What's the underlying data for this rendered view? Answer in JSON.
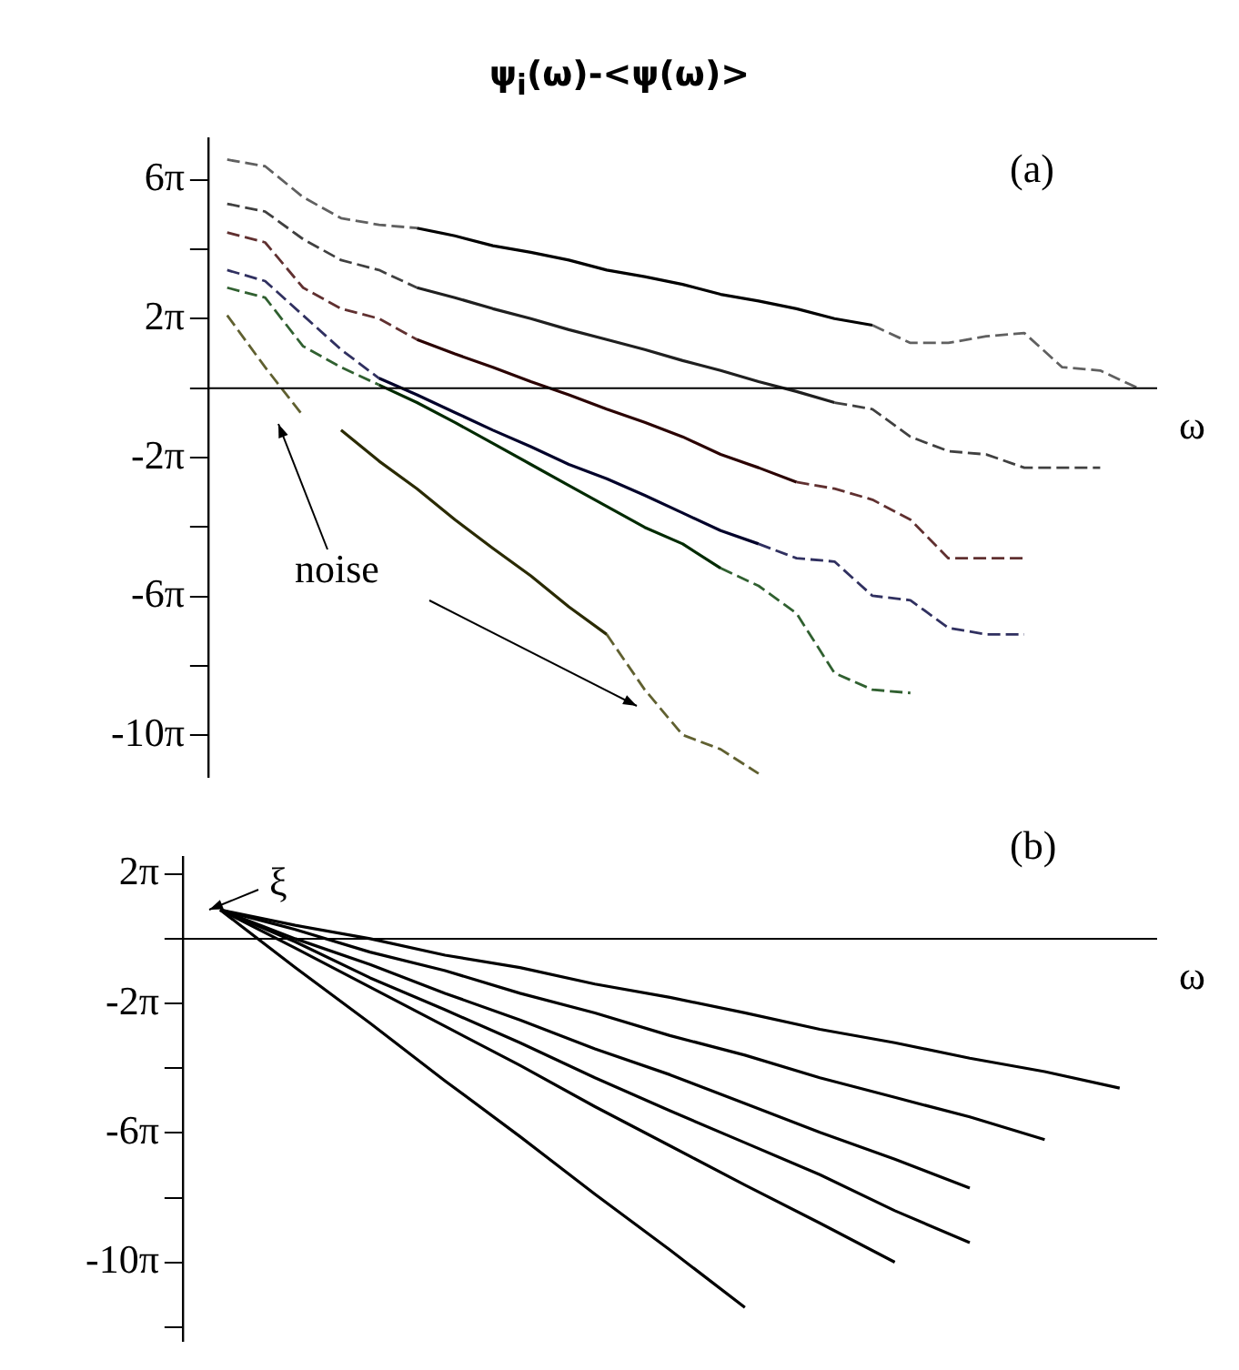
{
  "chart_data": [
    {
      "type": "line",
      "title": "ψ$_{i}$(ω)-<ψ(ω)>",
      "subtitle": "(a)",
      "xlabel": "ω",
      "marker": "none",
      "legend": false,
      "tick_labels": "y",
      "categories": [
        null,
        null,
        null,
        null,
        null,
        null,
        null,
        null,
        null,
        null,
        null,
        null,
        null,
        null,
        null,
        null,
        null,
        null,
        null,
        null,
        null,
        null,
        null,
        null,
        null
      ],
      "series": [
        {
          "color": "#606060",
          "line_style": "dashed",
          "values": [
            20.7,
            20.1,
            17.3,
            15.4,
            14.8,
            14.5,
            null,
            null,
            null,
            null,
            null,
            null,
            null,
            null,
            null,
            null,
            null,
            5.7,
            4.1,
            4.1,
            4.7,
            5.0,
            1.9,
            1.6,
            0
          ]
        },
        {
          "color": "#000000",
          "line_style": "solid",
          "values": [
            null,
            null,
            null,
            null,
            null,
            14.5,
            13.8,
            12.9,
            12.3,
            11.6,
            10.7,
            10.1,
            9.4,
            8.5,
            7.9,
            7.2,
            6.3,
            5.7,
            null,
            null,
            null,
            null,
            null,
            null,
            null
          ]
        },
        {
          "color": "#404040",
          "line_style": "dashed",
          "values": [
            16.7,
            16.0,
            13.5,
            11.6,
            10.7,
            9.1,
            null,
            null,
            null,
            null,
            null,
            null,
            null,
            null,
            null,
            null,
            -1.3,
            -1.9,
            -4.4,
            -5.7,
            -6.0,
            -7.2,
            -7.2,
            -7.2,
            null
          ]
        },
        {
          "color": "#1f1f1f",
          "line_style": "solid",
          "values": [
            null,
            null,
            null,
            null,
            null,
            9.1,
            8.2,
            7.2,
            6.3,
            5.3,
            4.4,
            3.5,
            2.5,
            1.6,
            0.6,
            -0.3,
            -1.3,
            null,
            null,
            null,
            null,
            null,
            null,
            null,
            null
          ]
        },
        {
          "color": "#603030",
          "line_style": "dashed",
          "values": [
            14.1,
            13.2,
            9.1,
            7.2,
            6.3,
            4.4,
            null,
            null,
            null,
            null,
            null,
            null,
            null,
            null,
            null,
            -8.5,
            -9.1,
            -10.1,
            -11.9,
            -15.4,
            -15.4,
            -15.4,
            null,
            null,
            null
          ]
        },
        {
          "color": "#2a0000",
          "line_style": "solid",
          "values": [
            null,
            null,
            null,
            null,
            null,
            4.4,
            3.1,
            1.9,
            0.6,
            -0.6,
            -1.9,
            -3.1,
            -4.4,
            -6.0,
            -7.2,
            -8.5,
            null,
            null,
            null,
            null,
            null,
            null,
            null,
            null,
            null
          ]
        },
        {
          "color": "#303060",
          "line_style": "dashed",
          "values": [
            10.7,
            9.7,
            6.6,
            3.5,
            0.9,
            null,
            null,
            null,
            null,
            null,
            null,
            null,
            null,
            null,
            -14.1,
            -15.4,
            -15.7,
            -18.8,
            -19.2,
            -21.7,
            -22.3,
            -22.3,
            null,
            null,
            null
          ]
        },
        {
          "color": "#00002a",
          "line_style": "solid",
          "values": [
            null,
            null,
            null,
            null,
            0.9,
            -0.6,
            -2.2,
            -3.8,
            -5.3,
            -6.9,
            -8.2,
            -9.7,
            -11.3,
            -12.9,
            -14.1,
            null,
            null,
            null,
            null,
            null,
            null,
            null,
            null,
            null,
            null
          ]
        },
        {
          "color": "#306030",
          "line_style": "dashed",
          "values": [
            9.1,
            8.2,
            3.8,
            1.9,
            0.3,
            null,
            null,
            null,
            null,
            null,
            null,
            null,
            null,
            -16.3,
            -17.9,
            -20.4,
            -25.8,
            -27.3,
            -27.6,
            null,
            null,
            null,
            null,
            null,
            null
          ]
        },
        {
          "color": "#002a00",
          "line_style": "solid",
          "values": [
            null,
            null,
            null,
            null,
            0.3,
            -1.3,
            -3.1,
            -5.0,
            -6.9,
            -8.8,
            -10.7,
            -12.6,
            -14.1,
            -16.3,
            null,
            null,
            null,
            null,
            null,
            null,
            null,
            null,
            null,
            null,
            null
          ]
        },
        {
          "color": "#606030",
          "line_style": "dashed",
          "values": [
            6.6,
            1.9,
            -2.5,
            null,
            null,
            null,
            null,
            null,
            null,
            null,
            -22.3,
            -27.3,
            -31.4,
            -32.7,
            -34.9,
            null,
            null,
            null,
            null,
            null,
            null,
            null,
            null,
            null,
            null
          ]
        },
        {
          "color": "#2a2a00",
          "line_style": "solid",
          "values": [
            null,
            null,
            null,
            -3.8,
            -6.6,
            -9.1,
            -11.9,
            -14.5,
            -17.0,
            -19.8,
            -22.3,
            null,
            null,
            null,
            null,
            null,
            null,
            null,
            null,
            null,
            null,
            null,
            null,
            null,
            null
          ]
        }
      ],
      "ylim": [
        -35.2,
        22.6
      ],
      "yticks": [
        {
          "value": 18.85,
          "label": "6π"
        },
        {
          "value": 12.57,
          "label": null
        },
        {
          "value": 6.28,
          "label": "2π"
        },
        {
          "value": 0,
          "label": null
        },
        {
          "value": -6.28,
          "label": "-2π"
        },
        {
          "value": -12.57,
          "label": null
        },
        {
          "value": -18.85,
          "label": "-6π"
        },
        {
          "value": -25.13,
          "label": null
        },
        {
          "value": -31.42,
          "label": "-10π"
        }
      ],
      "ref_lines": [
        {
          "axis": "y",
          "value": 0,
          "color": "#000000"
        }
      ],
      "annotations": [
        "noise"
      ]
    },
    {
      "type": "line",
      "title": "(b)",
      "xlabel": "ω",
      "marker": "none",
      "legend": false,
      "tick_labels": "y",
      "line_style": "solid",
      "categories": [
        null,
        null,
        null,
        null,
        null,
        null,
        null,
        null,
        null,
        null,
        null,
        null,
        null
      ],
      "series": [
        {
          "color": "#000000",
          "values": [
            2.8,
            1.3,
            0,
            -1.6,
            -2.8,
            -4.4,
            -5.7,
            -7.2,
            -8.8,
            -10.1,
            -11.6,
            -12.9,
            -14.5
          ]
        },
        {
          "color": "#000000",
          "values": [
            2.8,
            0.9,
            -1.3,
            -3.1,
            -5.3,
            -7.2,
            -9.4,
            -11.3,
            -13.5,
            -15.4,
            -17.3,
            -19.5,
            null
          ]
        },
        {
          "color": "#000000",
          "values": [
            2.8,
            0,
            -2.5,
            -5.3,
            -7.9,
            -10.7,
            -13.2,
            -16.0,
            -18.8,
            -21.4,
            -24.2,
            null,
            null
          ]
        },
        {
          "color": "#000000",
          "values": [
            2.8,
            -0.3,
            -3.8,
            -6.9,
            -10.1,
            -13.5,
            -16.7,
            -19.8,
            -22.9,
            -26.4,
            -29.5,
            null,
            null
          ]
        },
        {
          "color": "#000000",
          "values": [
            2.8,
            -0.9,
            -4.7,
            -8.5,
            -12.3,
            -16.3,
            -20.1,
            -23.9,
            -27.6,
            -31.4,
            null,
            null,
            null
          ]
        },
        {
          "color": "#000000",
          "values": [
            2.8,
            -2.8,
            -8.2,
            -13.8,
            -19.2,
            -24.8,
            -30.2,
            -35.8,
            null,
            null,
            null,
            null,
            null
          ]
        }
      ],
      "ylim": [
        -39.0,
        7.9
      ],
      "yticks": [
        {
          "value": 6.28,
          "label": "2π"
        },
        {
          "value": 0,
          "label": null
        },
        {
          "value": -6.28,
          "label": "-2π"
        },
        {
          "value": -12.57,
          "label": null
        },
        {
          "value": -18.85,
          "label": "-6π"
        },
        {
          "value": -25.13,
          "label": null
        },
        {
          "value": -31.42,
          "label": "-10π"
        },
        {
          "value": -37.7,
          "label": null
        }
      ],
      "ref_lines": [
        {
          "axis": "y",
          "value": 0,
          "color": "#000000"
        }
      ],
      "annotations": [
        "ξ"
      ]
    }
  ]
}
